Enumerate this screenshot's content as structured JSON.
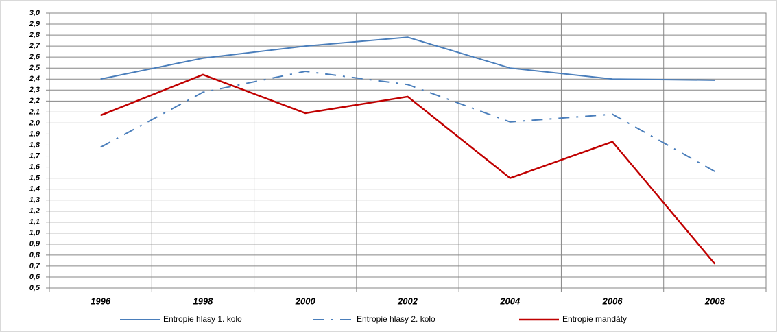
{
  "chart_data": {
    "type": "line",
    "categories": [
      "1996",
      "1998",
      "2000",
      "2002",
      "2004",
      "2006",
      "2008"
    ],
    "series": [
      {
        "name": "Entropie hlasy 1. kolo",
        "color": "#4a7ebb",
        "line_style": "solid",
        "values": [
          2.4,
          2.59,
          2.7,
          2.78,
          2.5,
          2.4,
          2.39
        ]
      },
      {
        "name": "Entropie hlasy 2. kolo",
        "color": "#4a7ebb",
        "line_style": "dashed",
        "values": [
          1.78,
          2.28,
          2.47,
          2.35,
          2.01,
          2.08,
          1.56
        ]
      },
      {
        "name": "Entropie mandáty",
        "color": "#c00000",
        "line_style": "solid",
        "values": [
          2.07,
          2.44,
          2.09,
          2.24,
          1.5,
          1.83,
          0.72
        ]
      }
    ],
    "ylim": [
      0.5,
      3.0
    ],
    "yticks": [
      {
        "value": 0.5,
        "label": "0,5"
      },
      {
        "value": 0.6,
        "label": "0,6"
      },
      {
        "value": 0.7,
        "label": "0,7"
      },
      {
        "value": 0.8,
        "label": "0,8"
      },
      {
        "value": 0.9,
        "label": "0,9"
      },
      {
        "value": 1.0,
        "label": "1,0"
      },
      {
        "value": 1.1,
        "label": "1,1"
      },
      {
        "value": 1.2,
        "label": "1,2"
      },
      {
        "value": 1.3,
        "label": "1,3"
      },
      {
        "value": 1.4,
        "label": "1,4"
      },
      {
        "value": 1.5,
        "label": "1,5"
      },
      {
        "value": 1.6,
        "label": "1,6"
      },
      {
        "value": 1.7,
        "label": "1,7"
      },
      {
        "value": 1.8,
        "label": "1,8"
      },
      {
        "value": 1.9,
        "label": "1,9"
      },
      {
        "value": 2.0,
        "label": "2,0"
      },
      {
        "value": 2.1,
        "label": "2,1"
      },
      {
        "value": 2.2,
        "label": "2,2"
      },
      {
        "value": 2.3,
        "label": "2,3"
      },
      {
        "value": 2.4,
        "label": "2,4"
      },
      {
        "value": 2.5,
        "label": "2,5"
      },
      {
        "value": 2.6,
        "label": "2,6"
      },
      {
        "value": 2.7,
        "label": "2,7"
      },
      {
        "value": 2.8,
        "label": "2,8"
      },
      {
        "value": 2.9,
        "label": "2,9"
      },
      {
        "value": 3.0,
        "label": "3,0"
      }
    ],
    "grid": true,
    "legend": "bottom"
  }
}
